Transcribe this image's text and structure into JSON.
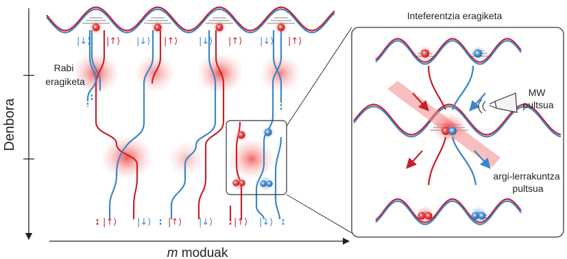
{
  "axes": {
    "y_label": "Denbora",
    "x_label_italic": "m",
    "x_label_rest": " moduak"
  },
  "main": {
    "rabi_label_line1": "Rabi",
    "rabi_label_line2": "eragiketa",
    "ket_down": "|↓⟩",
    "ket_up": "|↑⟩"
  },
  "inset": {
    "title": "Inteferentzia eragiketa",
    "mw_line1": "MW",
    "mw_line2": "pultsua",
    "light_line1": "argi-lerrakuntza",
    "light_line2": "pultsua"
  },
  "colors": {
    "red": "#c8202c",
    "blue": "#3a86c8",
    "glow_red": "#f07070"
  }
}
